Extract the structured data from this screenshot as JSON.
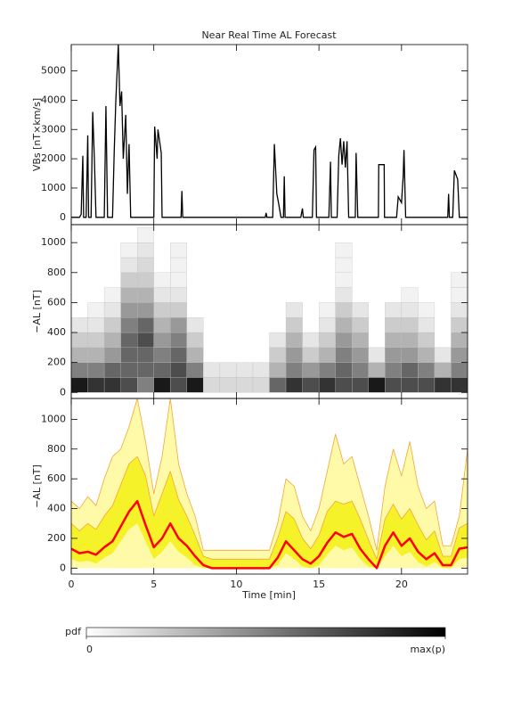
{
  "chart_data": [
    {
      "type": "line",
      "title": "Near Real Time AL Forecast",
      "ylabel": "VBs [nT×km/s]",
      "color": "#000000",
      "x": [
        0,
        0.5,
        0.6,
        0.7,
        0.75,
        0.9,
        1.0,
        1.05,
        1.2,
        1.3,
        1.4,
        1.5,
        2.0,
        2.1,
        2.2,
        2.5,
        2.6,
        2.7,
        2.85,
        2.95,
        3.05,
        3.15,
        3.3,
        3.4,
        3.5,
        3.6,
        5.0,
        5.05,
        5.2,
        5.25,
        5.45,
        5.5,
        6.65,
        6.7,
        6.75,
        11.75,
        11.8,
        11.85,
        12.2,
        12.3,
        12.45,
        12.55,
        12.7,
        12.85,
        12.9,
        12.95,
        13.9,
        14.0,
        14.05,
        14.6,
        14.7,
        14.8,
        14.85,
        15.6,
        15.7,
        15.75,
        16.1,
        16.2,
        16.3,
        16.4,
        16.5,
        16.6,
        16.7,
        16.8,
        17.2,
        17.25,
        17.35,
        18.6,
        18.62,
        18.95,
        18.97,
        19.7,
        19.8,
        20.0,
        20.1,
        20.15,
        20.25,
        22.8,
        22.85,
        22.9,
        23.1,
        23.2,
        23.4,
        23.5,
        24
      ],
      "values": [
        0,
        0,
        100,
        2100,
        0,
        0,
        2800,
        0,
        0,
        3600,
        2000,
        0,
        0,
        3800,
        0,
        0,
        2200,
        4000,
        5900,
        3800,
        4300,
        2000,
        3500,
        800,
        2500,
        0,
        0,
        3100,
        2000,
        3000,
        2200,
        0,
        0,
        900,
        0,
        0,
        150,
        0,
        0,
        2500,
        800,
        500,
        0,
        0,
        1400,
        0,
        0,
        300,
        0,
        0,
        2300,
        2400,
        0,
        0,
        1900,
        0,
        0,
        2100,
        2700,
        1800,
        2600,
        1700,
        2600,
        0,
        0,
        2200,
        0,
        0,
        1800,
        1800,
        0,
        0,
        700,
        500,
        1400,
        2300,
        0,
        0,
        800,
        0,
        0,
        1600,
        1300,
        0,
        0
      ],
      "xlim": [
        0,
        24
      ],
      "ylim": [
        -250,
        5900
      ],
      "yticks": [
        0,
        1000,
        2000,
        3000,
        4000,
        5000
      ]
    },
    {
      "type": "heatmap",
      "ylabel": "−AL [nT]",
      "x_bins": [
        0,
        1,
        2,
        3,
        4,
        5,
        6,
        7,
        8,
        9,
        10,
        11,
        12,
        13,
        14,
        15,
        16,
        17,
        18,
        19,
        20,
        21,
        22,
        23,
        24
      ],
      "y_bins": [
        0,
        100,
        200,
        300,
        400,
        500,
        600,
        700,
        800,
        900,
        1000,
        1100
      ],
      "z": [
        [
          0.9,
          0.5,
          0.3,
          0.2,
          0.1,
          0,
          0,
          0,
          0,
          0,
          0
        ],
        [
          0.8,
          0.5,
          0.3,
          0.2,
          0.1,
          0.05,
          0,
          0,
          0,
          0,
          0
        ],
        [
          0.8,
          0.6,
          0.4,
          0.3,
          0.2,
          0.1,
          0.05,
          0,
          0,
          0,
          0
        ],
        [
          0.7,
          0.6,
          0.6,
          0.6,
          0.5,
          0.4,
          0.3,
          0.2,
          0.1,
          0.05,
          0
        ],
        [
          0.5,
          0.6,
          0.6,
          0.7,
          0.6,
          0.4,
          0.3,
          0.2,
          0.15,
          0.1,
          0.05
        ],
        [
          0.9,
          0.6,
          0.5,
          0.4,
          0.3,
          0.2,
          0.1,
          0.05,
          0,
          0,
          0
        ],
        [
          0.7,
          0.7,
          0.6,
          0.5,
          0.4,
          0.2,
          0.1,
          0.05,
          0.05,
          0.05,
          0
        ],
        [
          0.9,
          0.5,
          0.3,
          0.2,
          0.1,
          0,
          0,
          0,
          0,
          0,
          0
        ],
        [
          0.15,
          0.1,
          0,
          0,
          0,
          0,
          0,
          0,
          0,
          0,
          0
        ],
        [
          0.15,
          0.1,
          0,
          0,
          0,
          0,
          0,
          0,
          0,
          0,
          0
        ],
        [
          0.15,
          0.1,
          0,
          0,
          0,
          0,
          0,
          0,
          0,
          0,
          0
        ],
        [
          0.15,
          0.1,
          0,
          0,
          0,
          0,
          0,
          0,
          0,
          0,
          0
        ],
        [
          0.6,
          0.3,
          0.2,
          0.1,
          0,
          0,
          0,
          0,
          0,
          0,
          0
        ],
        [
          0.8,
          0.5,
          0.4,
          0.3,
          0.2,
          0.1,
          0,
          0,
          0,
          0,
          0
        ],
        [
          0.7,
          0.4,
          0.2,
          0.1,
          0,
          0,
          0,
          0,
          0,
          0,
          0
        ],
        [
          0.8,
          0.5,
          0.3,
          0.2,
          0.1,
          0.05,
          0,
          0,
          0,
          0,
          0
        ],
        [
          0.7,
          0.6,
          0.5,
          0.4,
          0.3,
          0.2,
          0.1,
          0.05,
          0.05,
          0.05,
          0
        ],
        [
          0.7,
          0.5,
          0.4,
          0.3,
          0.2,
          0.1,
          0,
          0,
          0,
          0,
          0
        ],
        [
          0.9,
          0.3,
          0.1,
          0,
          0,
          0,
          0,
          0,
          0,
          0,
          0
        ],
        [
          0.7,
          0.5,
          0.4,
          0.3,
          0.2,
          0.1,
          0,
          0,
          0,
          0,
          0
        ],
        [
          0.7,
          0.6,
          0.4,
          0.3,
          0.2,
          0.1,
          0.05,
          0,
          0,
          0,
          0
        ],
        [
          0.7,
          0.5,
          0.3,
          0.2,
          0.1,
          0.05,
          0,
          0,
          0,
          0,
          0
        ],
        [
          0.8,
          0.3,
          0.1,
          0,
          0,
          0,
          0,
          0,
          0,
          0,
          0
        ],
        [
          0.8,
          0.5,
          0.4,
          0.3,
          0.2,
          0.1,
          0.05,
          0.05,
          0,
          0,
          0
        ]
      ],
      "xlim": [
        0,
        24
      ],
      "ylim": [
        -40,
        1120
      ],
      "yticks": [
        0,
        200,
        400,
        600,
        800,
        1000
      ],
      "colorbar_label": "pdf",
      "colorbar_ticks": [
        {
          "value": 0,
          "label": "0"
        },
        {
          "value": 1,
          "label": "max(p)"
        }
      ]
    },
    {
      "type": "band",
      "ylabel": "−AL [nT]",
      "xlabel": "Time [min]",
      "edge_color": "#f2a43a",
      "x": [
        0,
        0.5,
        1,
        1.5,
        2,
        2.5,
        3,
        3.5,
        4,
        4.5,
        5,
        5.5,
        6,
        6.5,
        7,
        7.5,
        8,
        8.5,
        9,
        9.5,
        10,
        10.5,
        11,
        11.5,
        12,
        12.5,
        13,
        13.5,
        14,
        14.5,
        15,
        15.5,
        16,
        16.5,
        17,
        17.5,
        18,
        18.5,
        19,
        19.5,
        20,
        20.5,
        21,
        21.5,
        22,
        22.5,
        23,
        23.5,
        24
      ],
      "series": [
        {
          "color": "#fffaa8",
          "values": [
            450,
            400,
            480,
            420,
            600,
            750,
            800,
            950,
            1140,
            850,
            500,
            750,
            1140,
            700,
            500,
            350,
            120,
            120,
            120,
            120,
            120,
            120,
            120,
            120,
            120,
            300,
            600,
            550,
            350,
            250,
            400,
            650,
            900,
            700,
            750,
            550,
            350,
            120,
            550,
            800,
            620,
            850,
            550,
            400,
            450,
            150,
            150,
            350,
            800
          ]
        },
        {
          "color": "#f6f22a",
          "values": [
            300,
            250,
            300,
            260,
            350,
            420,
            560,
            700,
            750,
            620,
            350,
            500,
            650,
            460,
            350,
            220,
            80,
            60,
            60,
            60,
            60,
            60,
            60,
            60,
            60,
            200,
            380,
            330,
            200,
            130,
            220,
            380,
            450,
            430,
            450,
            330,
            190,
            60,
            330,
            430,
            330,
            400,
            290,
            190,
            250,
            80,
            80,
            270,
            300
          ]
        },
        {
          "color": "#f6f22a",
          "values": [
            60,
            40,
            50,
            30,
            70,
            100,
            180,
            260,
            300,
            180,
            60,
            110,
            180,
            110,
            70,
            20,
            0,
            0,
            0,
            0,
            0,
            0,
            0,
            0,
            0,
            20,
            100,
            60,
            10,
            0,
            20,
            90,
            150,
            120,
            140,
            60,
            10,
            0,
            80,
            150,
            80,
            110,
            40,
            10,
            40,
            0,
            0,
            60,
            70
          ]
        },
        {
          "color": "#ff0000",
          "values": [
            130,
            100,
            110,
            90,
            140,
            180,
            280,
            380,
            450,
            290,
            140,
            200,
            300,
            200,
            150,
            80,
            20,
            0,
            0,
            0,
            0,
            0,
            0,
            0,
            0,
            70,
            180,
            120,
            60,
            30,
            80,
            170,
            240,
            210,
            230,
            130,
            60,
            0,
            150,
            240,
            150,
            200,
            110,
            60,
            100,
            20,
            20,
            130,
            140
          ]
        }
      ],
      "xlim": [
        0,
        24
      ],
      "ylim": [
        -40,
        1140
      ],
      "yticks": [
        0,
        200,
        400,
        600,
        800,
        1000
      ],
      "xticks": [
        0,
        5,
        10,
        15,
        20
      ]
    }
  ]
}
